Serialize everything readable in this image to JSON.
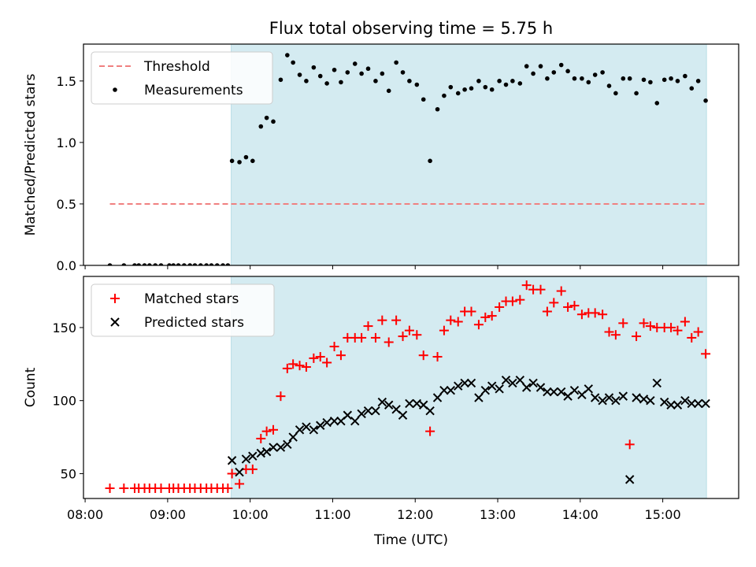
{
  "chart_data": {
    "title": "Flux total observing time = 5.75 h",
    "xlabel": "Time (UTC)",
    "x_unit": "hours UTC",
    "xlim": [
      7.98,
      15.92
    ],
    "x_ticks": [
      8,
      9,
      10,
      11,
      12,
      13,
      14,
      15
    ],
    "x_tick_labels": [
      "08:00",
      "09:00",
      "10:00",
      "11:00",
      "12:00",
      "13:00",
      "14:00",
      "15:00"
    ],
    "observing_window": {
      "start": 9.77,
      "end": 15.53,
      "color": "#d4ebf1"
    },
    "panels": [
      {
        "type": "scatter",
        "ylabel": "Matched/Predicted stars",
        "ylim": [
          0,
          1.8
        ],
        "y_ticks": [
          0.0,
          0.5,
          1.0,
          1.5
        ],
        "y_tick_labels": [
          "0.0",
          "0.5",
          "1.0",
          "1.5"
        ],
        "legend_position": "top-left",
        "threshold": {
          "name": "Threshold",
          "value": 0.5,
          "x_start": 8.3,
          "x_end": 15.53,
          "color": "#f08080"
        },
        "series": [
          {
            "name": "Measurements",
            "marker": "dot",
            "color": "#000000",
            "x": [
              8.3,
              8.47,
              8.6,
              8.65,
              8.72,
              8.78,
              8.85,
              8.92,
              9.02,
              9.07,
              9.13,
              9.2,
              9.27,
              9.33,
              9.4,
              9.47,
              9.53,
              9.6,
              9.67,
              9.73,
              9.78,
              9.87,
              9.95,
              10.03,
              10.13,
              10.2,
              10.28,
              10.37,
              10.45,
              10.52,
              10.6,
              10.68,
              10.77,
              10.85,
              10.93,
              11.02,
              11.1,
              11.18,
              11.27,
              11.35,
              11.43,
              11.52,
              11.6,
              11.68,
              11.77,
              11.85,
              11.93,
              12.02,
              12.1,
              12.18,
              12.27,
              12.35,
              12.43,
              12.52,
              12.6,
              12.68,
              12.77,
              12.85,
              12.93,
              13.02,
              13.1,
              13.18,
              13.27,
              13.35,
              13.43,
              13.52,
              13.6,
              13.68,
              13.77,
              13.85,
              13.93,
              14.02,
              14.1,
              14.18,
              14.27,
              14.35,
              14.43,
              14.52,
              14.6,
              14.68,
              14.77,
              14.85,
              14.93,
              15.02,
              15.1,
              15.18,
              15.27,
              15.35,
              15.43,
              15.52
            ],
            "y": [
              0,
              0,
              0,
              0,
              0,
              0,
              0,
              0,
              0,
              0,
              0,
              0,
              0,
              0,
              0,
              0,
              0,
              0,
              0,
              0,
              0.85,
              0.84,
              0.88,
              0.85,
              1.13,
              1.2,
              1.17,
              1.51,
              1.71,
              1.65,
              1.55,
              1.5,
              1.61,
              1.54,
              1.48,
              1.59,
              1.49,
              1.57,
              1.64,
              1.56,
              1.6,
              1.5,
              1.56,
              1.42,
              1.65,
              1.57,
              1.5,
              1.47,
              1.35,
              0.85,
              1.27,
              1.38,
              1.45,
              1.4,
              1.43,
              1.44,
              1.5,
              1.45,
              1.43,
              1.5,
              1.47,
              1.5,
              1.48,
              1.62,
              1.56,
              1.62,
              1.52,
              1.57,
              1.63,
              1.58,
              1.52,
              1.52,
              1.49,
              1.55,
              1.57,
              1.46,
              1.4,
              1.52,
              1.52,
              1.4,
              1.51,
              1.49,
              1.32,
              1.51,
              1.52,
              1.5,
              1.54,
              1.44,
              1.5,
              1.34
            ]
          }
        ]
      },
      {
        "type": "scatter",
        "ylabel": "Count",
        "ylim": [
          33,
          185
        ],
        "y_ticks": [
          50,
          100,
          150
        ],
        "y_tick_labels": [
          "50",
          "100",
          "150"
        ],
        "legend_position": "top-left",
        "series": [
          {
            "name": "Matched stars",
            "marker": "plus",
            "color": "#ff0000",
            "x": [
              8.3,
              8.47,
              8.6,
              8.65,
              8.72,
              8.78,
              8.85,
              8.92,
              9.02,
              9.07,
              9.13,
              9.2,
              9.27,
              9.33,
              9.4,
              9.47,
              9.53,
              9.6,
              9.67,
              9.73,
              9.78,
              9.87,
              9.95,
              10.03,
              10.13,
              10.2,
              10.28,
              10.37,
              10.45,
              10.52,
              10.6,
              10.68,
              10.77,
              10.85,
              10.93,
              11.02,
              11.1,
              11.18,
              11.27,
              11.35,
              11.43,
              11.52,
              11.6,
              11.68,
              11.77,
              11.85,
              11.93,
              12.02,
              12.1,
              12.18,
              12.27,
              12.35,
              12.43,
              12.52,
              12.6,
              12.68,
              12.77,
              12.85,
              12.93,
              13.02,
              13.1,
              13.18,
              13.27,
              13.35,
              13.43,
              13.52,
              13.6,
              13.68,
              13.77,
              13.85,
              13.93,
              14.02,
              14.1,
              14.18,
              14.27,
              14.35,
              14.43,
              14.52,
              14.6,
              14.68,
              14.77,
              14.85,
              14.93,
              15.02,
              15.1,
              15.18,
              15.27,
              15.35,
              15.43,
              15.52
            ],
            "y": [
              40,
              40,
              40,
              40,
              40,
              40,
              40,
              40,
              40,
              40,
              40,
              40,
              40,
              40,
              40,
              40,
              40,
              40,
              40,
              40,
              50,
              43,
              53,
              53,
              74,
              79,
              80,
              103,
              122,
              125,
              124,
              123,
              129,
              130,
              126,
              137,
              131,
              143,
              143,
              143,
              151,
              143,
              155,
              140,
              155,
              144,
              148,
              145,
              131,
              79,
              130,
              148,
              155,
              154,
              161,
              161,
              152,
              157,
              158,
              164,
              168,
              168,
              169,
              179,
              176,
              176,
              161,
              167,
              175,
              164,
              165,
              159,
              160,
              160,
              159,
              147,
              145,
              153,
              70,
              144,
              153,
              151,
              150,
              150,
              150,
              148,
              154,
              143,
              147,
              132
            ]
          },
          {
            "name": "Predicted stars",
            "marker": "x",
            "color": "#000000",
            "x": [
              9.78,
              9.87,
              9.95,
              10.03,
              10.13,
              10.2,
              10.28,
              10.37,
              10.45,
              10.52,
              10.6,
              10.68,
              10.77,
              10.85,
              10.93,
              11.02,
              11.1,
              11.18,
              11.27,
              11.35,
              11.43,
              11.52,
              11.6,
              11.68,
              11.77,
              11.85,
              11.93,
              12.02,
              12.1,
              12.18,
              12.27,
              12.35,
              12.43,
              12.52,
              12.6,
              12.68,
              12.77,
              12.85,
              12.93,
              13.02,
              13.1,
              13.18,
              13.27,
              13.35,
              13.43,
              13.52,
              13.6,
              13.68,
              13.77,
              13.85,
              13.93,
              14.02,
              14.1,
              14.18,
              14.27,
              14.35,
              14.43,
              14.52,
              14.6,
              14.68,
              14.77,
              14.85,
              14.93,
              15.02,
              15.1,
              15.18,
              15.27,
              15.35,
              15.43,
              15.52
            ],
            "y": [
              59,
              51,
              60,
              62,
              64,
              65,
              68,
              68,
              70,
              75,
              80,
              82,
              80,
              83,
              85,
              86,
              86,
              90,
              86,
              91,
              93,
              93,
              99,
              97,
              94,
              90,
              98,
              98,
              97,
              93,
              102,
              107,
              107,
              110,
              112,
              112,
              102,
              107,
              110,
              108,
              114,
              112,
              114,
              109,
              112,
              109,
              106,
              106,
              106,
              103,
              107,
              104,
              108,
              102,
              100,
              102,
              100,
              103,
              46,
              102,
              101,
              100,
              112,
              99,
              97,
              97,
              100,
              98,
              98,
              98
            ]
          }
        ]
      }
    ]
  }
}
